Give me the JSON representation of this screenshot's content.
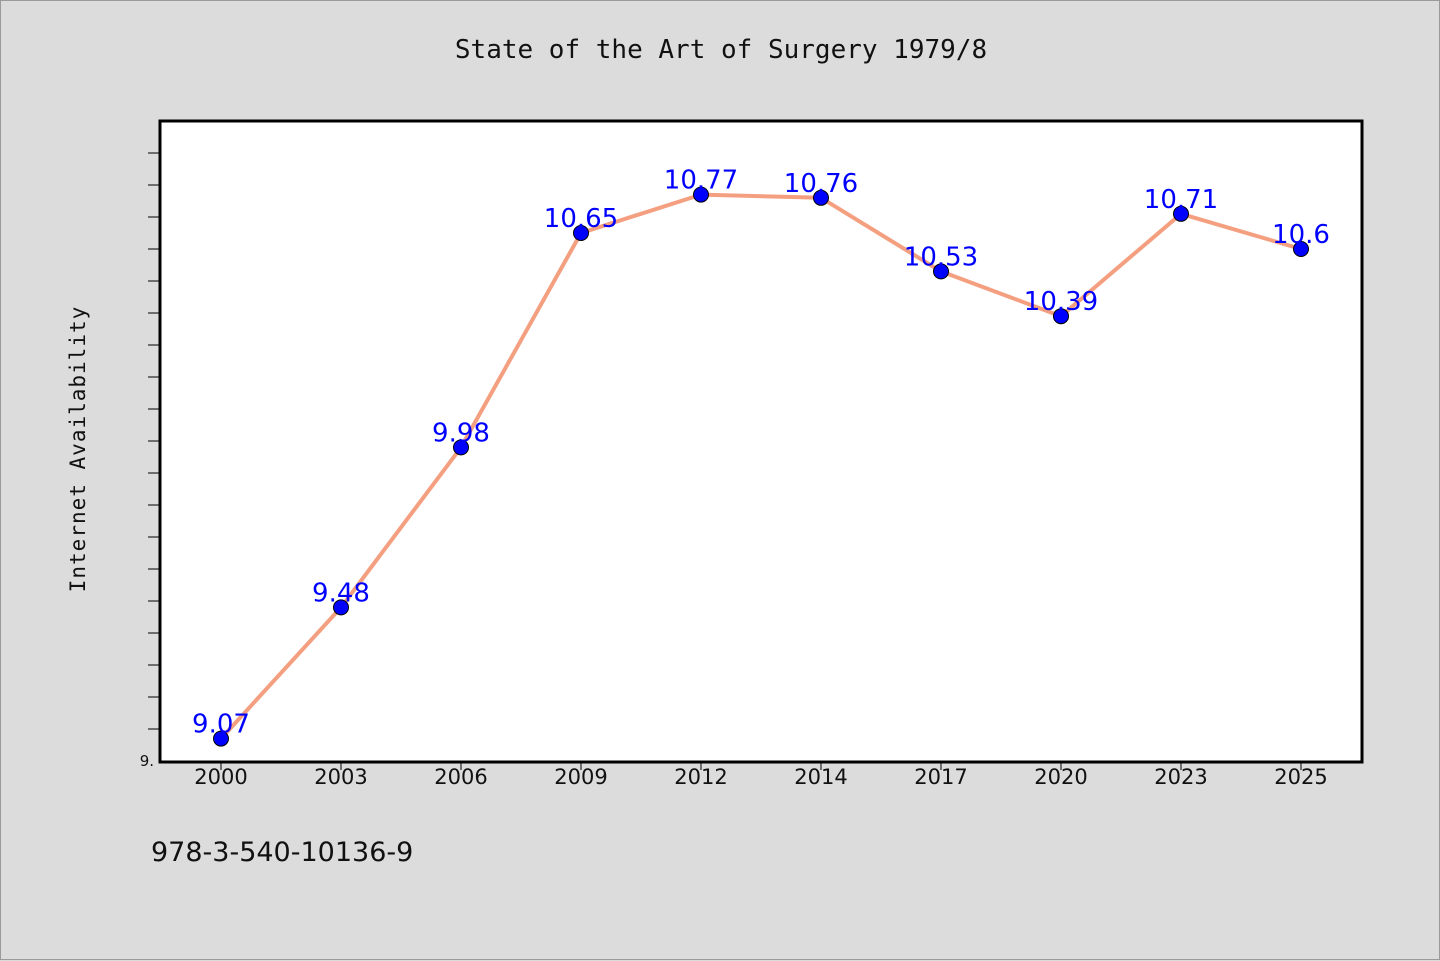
{
  "chart_data": {
    "type": "line",
    "title": "State of the Art of Surgery 1979/8",
    "xlabel": "",
    "ylabel": "Internet Availability",
    "categories": [
      "2000",
      "2003",
      "2006",
      "2009",
      "2012",
      "2014",
      "2017",
      "2020",
      "2023",
      "2025"
    ],
    "series": [
      {
        "values": [
          9.07,
          9.48,
          9.98,
          10.65,
          10.77,
          10.76,
          10.53,
          10.39,
          10.71,
          10.6
        ],
        "labels": [
          "9.07",
          "9.48",
          "9.98",
          "10.65",
          "10.77",
          "10.76",
          "10.53",
          "10.39",
          "10.71",
          "10.6"
        ]
      }
    ],
    "ylim": [
      9.0,
      11.0
    ],
    "y_tick_labels": [
      "9."
    ],
    "grid": false,
    "line_color": "#f4a080",
    "marker_color": "#0000ff",
    "label_color": "#0000ff"
  },
  "footer": {
    "isbn": "978-3-540-10136-9"
  }
}
